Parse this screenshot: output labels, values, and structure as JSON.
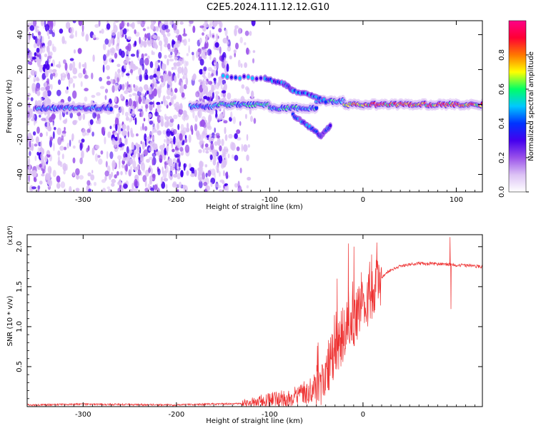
{
  "title": "C2E5.2024.111.12.12.G10",
  "chart_data": [
    {
      "type": "heatmap",
      "xlabel": "Height of straight line (km)",
      "ylabel": "Frequency (Hz)",
      "xlim": [
        -360,
        128
      ],
      "ylim": [
        -50,
        48
      ],
      "x_ticks": [
        -300,
        -200,
        -100,
        0,
        100
      ],
      "y_ticks": [
        -40,
        -20,
        0,
        20,
        40
      ],
      "colorbar": {
        "label": "Normalized spectral amplitude",
        "range": [
          0,
          1
        ],
        "ticks": [
          0.0,
          0.2,
          0.4,
          0.6,
          0.8
        ],
        "colormap": [
          "#ffffff",
          "#dcc2f5",
          "#9a52ea",
          "#4400ee",
          "#0033ff",
          "#00c8ff",
          "#00ff66",
          "#ffff00",
          "#ff7700",
          "#ff0033",
          "#ff0088"
        ]
      },
      "carrier": {
        "segments": [
          {
            "x": [
              -350,
              -270
            ],
            "freq": -2,
            "amplitude": 0.45
          },
          {
            "x": [
              -185,
              -160
            ],
            "freq": -1,
            "amplitude": 0.45
          },
          {
            "x": [
              -160,
              -100
            ],
            "freq": 0,
            "amplitude": 0.55
          },
          {
            "x": [
              -100,
              -50
            ],
            "freq": -2,
            "amplitude": 0.5
          },
          {
            "x": [
              -50,
              -20
            ],
            "freq": 2,
            "amplitude": 0.5
          },
          {
            "x": [
              -20,
              128
            ],
            "freq": 0,
            "amplitude": 0.8
          }
        ],
        "upper_branch": [
          {
            "x": -150,
            "freq": 16
          },
          {
            "x": -105,
            "freq": 15
          },
          {
            "x": -85,
            "freq": 12
          },
          {
            "x": -75,
            "freq": 8
          },
          {
            "x": -55,
            "freq": 5
          },
          {
            "x": -40,
            "freq": 2
          }
        ],
        "lower_branch": [
          {
            "x": -75,
            "freq": -6
          },
          {
            "x": -60,
            "freq": -12
          },
          {
            "x": -45,
            "freq": -18
          },
          {
            "x": -35,
            "freq": -12
          }
        ]
      },
      "noise_region_x": [
        -360,
        -145
      ]
    },
    {
      "type": "line",
      "xlabel": "Height of straight line (km)",
      "ylabel": "SNR (10 * v/v)",
      "y_multiplier": "(x10⁴)",
      "xlim": [
        -360,
        128
      ],
      "ylim": [
        0,
        2.15
      ],
      "x_ticks": [
        -300,
        -200,
        -100,
        0
      ],
      "y_ticks": [
        0.5,
        1.0,
        1.5,
        2.0
      ],
      "y_tick_labels": [
        "0.5",
        "1.0",
        "1.5",
        "2.0"
      ],
      "series_color": "#ee3333",
      "envelope": [
        {
          "x": -360,
          "y": 0.02
        },
        {
          "x": -300,
          "y": 0.03
        },
        {
          "x": -200,
          "y": 0.02
        },
        {
          "x": -130,
          "y": 0.04
        },
        {
          "x": -100,
          "y": 0.08
        },
        {
          "x": -75,
          "y": 0.1
        },
        {
          "x": -50,
          "y": 0.25
        },
        {
          "x": -40,
          "y": 0.45
        },
        {
          "x": -30,
          "y": 0.65
        },
        {
          "x": -20,
          "y": 0.95
        },
        {
          "x": -10,
          "y": 1.1
        },
        {
          "x": 0,
          "y": 1.25
        },
        {
          "x": 10,
          "y": 1.45
        },
        {
          "x": 25,
          "y": 1.68
        },
        {
          "x": 40,
          "y": 1.76
        },
        {
          "x": 60,
          "y": 1.79
        },
        {
          "x": 90,
          "y": 1.78
        },
        {
          "x": 128,
          "y": 1.75
        }
      ],
      "spikes": [
        {
          "x": -28,
          "y": 1.6
        },
        {
          "x": -16,
          "y": 2.04
        },
        {
          "x": -10,
          "y": 2.0
        },
        {
          "x": -2,
          "y": 1.68
        },
        {
          "x": 10,
          "y": 1.3
        },
        {
          "x": 93,
          "y": 2.12
        },
        {
          "x": 94,
          "y": 1.22
        }
      ]
    }
  ]
}
